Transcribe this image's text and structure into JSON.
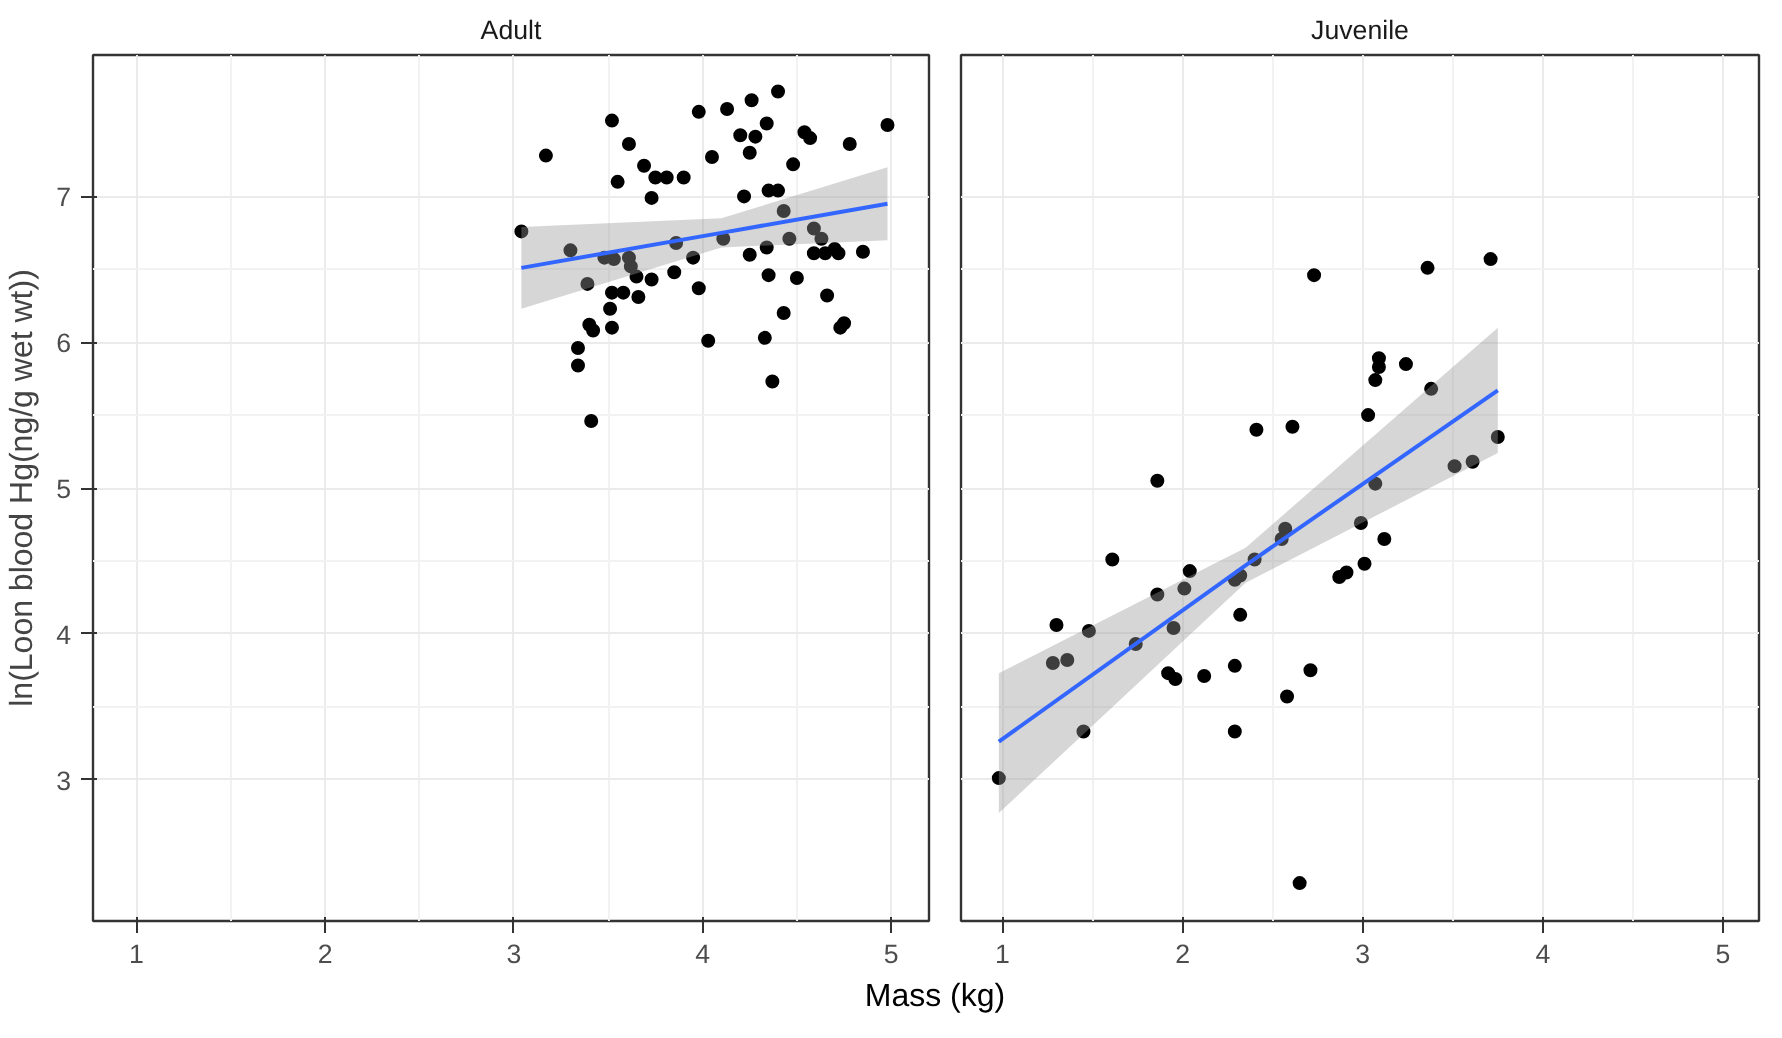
{
  "chart_data": [
    {
      "type": "scatter",
      "title": "Adult",
      "xlabel": "Mass (kg)",
      "ylabel": "ln(Loon blood Hg(ng/g wet wt))",
      "xlim": [
        0.77,
        5.2
      ],
      "ylim": [
        2.03,
        7.97
      ],
      "xticks": [
        1,
        2,
        3,
        4,
        5
      ],
      "yticks": [
        3,
        4,
        5,
        6,
        7
      ],
      "grid": true,
      "series": [
        {
          "marker": "circle",
          "color": "#000000",
          "x": [
            3.04,
            3.17,
            3.3,
            3.39,
            3.34,
            3.34,
            3.4,
            3.42,
            3.41,
            3.52,
            3.55,
            3.61,
            3.69,
            3.75,
            3.81,
            3.9,
            3.73,
            3.48,
            3.53,
            3.61,
            3.62,
            3.52,
            3.58,
            3.65,
            3.73,
            3.66,
            3.51,
            3.52,
            3.86,
            3.85,
            3.95,
            3.98,
            4.03,
            3.98,
            4.13,
            4.26,
            4.4,
            4.05,
            4.2,
            4.28,
            4.25,
            4.34,
            4.22,
            4.35,
            4.4,
            4.11,
            4.25,
            4.34,
            4.35,
            4.43,
            4.46,
            4.33,
            4.37,
            4.43,
            4.5,
            4.48,
            4.54,
            4.57,
            4.59,
            4.59,
            4.65,
            4.7,
            4.72,
            4.63,
            4.66,
            4.73,
            4.75,
            4.78,
            4.85,
            4.98
          ],
          "values": [
            6.76,
            7.28,
            6.63,
            6.4,
            5.96,
            5.84,
            6.12,
            6.08,
            5.46,
            7.52,
            7.1,
            7.36,
            7.21,
            7.13,
            7.13,
            7.13,
            6.99,
            6.58,
            6.57,
            6.58,
            6.52,
            6.34,
            6.34,
            6.45,
            6.43,
            6.31,
            6.23,
            6.1,
            6.68,
            6.48,
            6.58,
            6.37,
            6.01,
            7.58,
            7.6,
            7.66,
            7.72,
            7.27,
            7.42,
            7.41,
            7.3,
            7.5,
            7.0,
            7.04,
            7.04,
            6.71,
            6.6,
            6.65,
            6.46,
            6.9,
            6.71,
            6.03,
            5.73,
            6.2,
            6.44,
            7.22,
            7.44,
            7.4,
            6.78,
            6.61,
            6.61,
            6.64,
            6.61,
            6.71,
            6.32,
            6.1,
            6.13,
            7.36,
            6.62,
            7.49
          ]
        },
        {
          "type": "line",
          "color": "#3366ff",
          "x": [
            3.04,
            4.1,
            4.98
          ],
          "values": [
            6.51,
            6.75,
            6.95
          ],
          "lower": [
            6.23,
            6.65,
            6.7
          ],
          "upper": [
            6.79,
            6.85,
            7.2
          ]
        }
      ]
    },
    {
      "type": "scatter",
      "title": "Juvenile",
      "xlim": [
        0.77,
        5.2
      ],
      "ylim": [
        2.03,
        7.97
      ],
      "xticks": [
        1,
        2,
        3,
        4,
        5
      ],
      "yticks": [
        3,
        4,
        5,
        6,
        7
      ],
      "grid": true,
      "tick_labels": "x",
      "series": [
        {
          "marker": "circle",
          "color": "#000000",
          "x": [
            2.73,
            3.36,
            3.71,
            3.09,
            3.09,
            3.07,
            3.24,
            3.38,
            3.03,
            2.41,
            2.61,
            3.75,
            3.51,
            3.61,
            1.86,
            3.07,
            2.57,
            2.55,
            2.99,
            3.12,
            1.61,
            3.01,
            2.87,
            2.91,
            2.04,
            2.4,
            2.01,
            1.86,
            2.29,
            2.32,
            1.3,
            1.48,
            1.28,
            1.36,
            1.74,
            1.95,
            2.32,
            1.92,
            1.96,
            2.12,
            2.29,
            2.29,
            1.45,
            2.71,
            2.58,
            0.98,
            2.65
          ],
          "values": [
            6.46,
            6.51,
            6.57,
            5.89,
            5.83,
            5.74,
            5.85,
            5.68,
            5.5,
            5.4,
            5.42,
            5.35,
            5.15,
            5.18,
            5.05,
            5.03,
            4.72,
            4.65,
            4.76,
            4.65,
            4.51,
            4.48,
            4.39,
            4.42,
            4.43,
            4.51,
            4.31,
            4.27,
            4.37,
            4.4,
            4.06,
            4.02,
            3.8,
            3.82,
            3.93,
            4.04,
            4.13,
            3.73,
            3.69,
            3.71,
            3.78,
            3.33,
            3.33,
            3.75,
            3.57,
            3.01,
            2.29
          ]
        },
        {
          "type": "line",
          "color": "#3366ff",
          "x": [
            0.98,
            2.35,
            3.75
          ],
          "values": [
            3.26,
            4.47,
            5.67
          ],
          "lower": [
            2.77,
            4.35,
            5.24
          ],
          "upper": [
            3.73,
            4.59,
            6.1
          ]
        }
      ]
    }
  ]
}
